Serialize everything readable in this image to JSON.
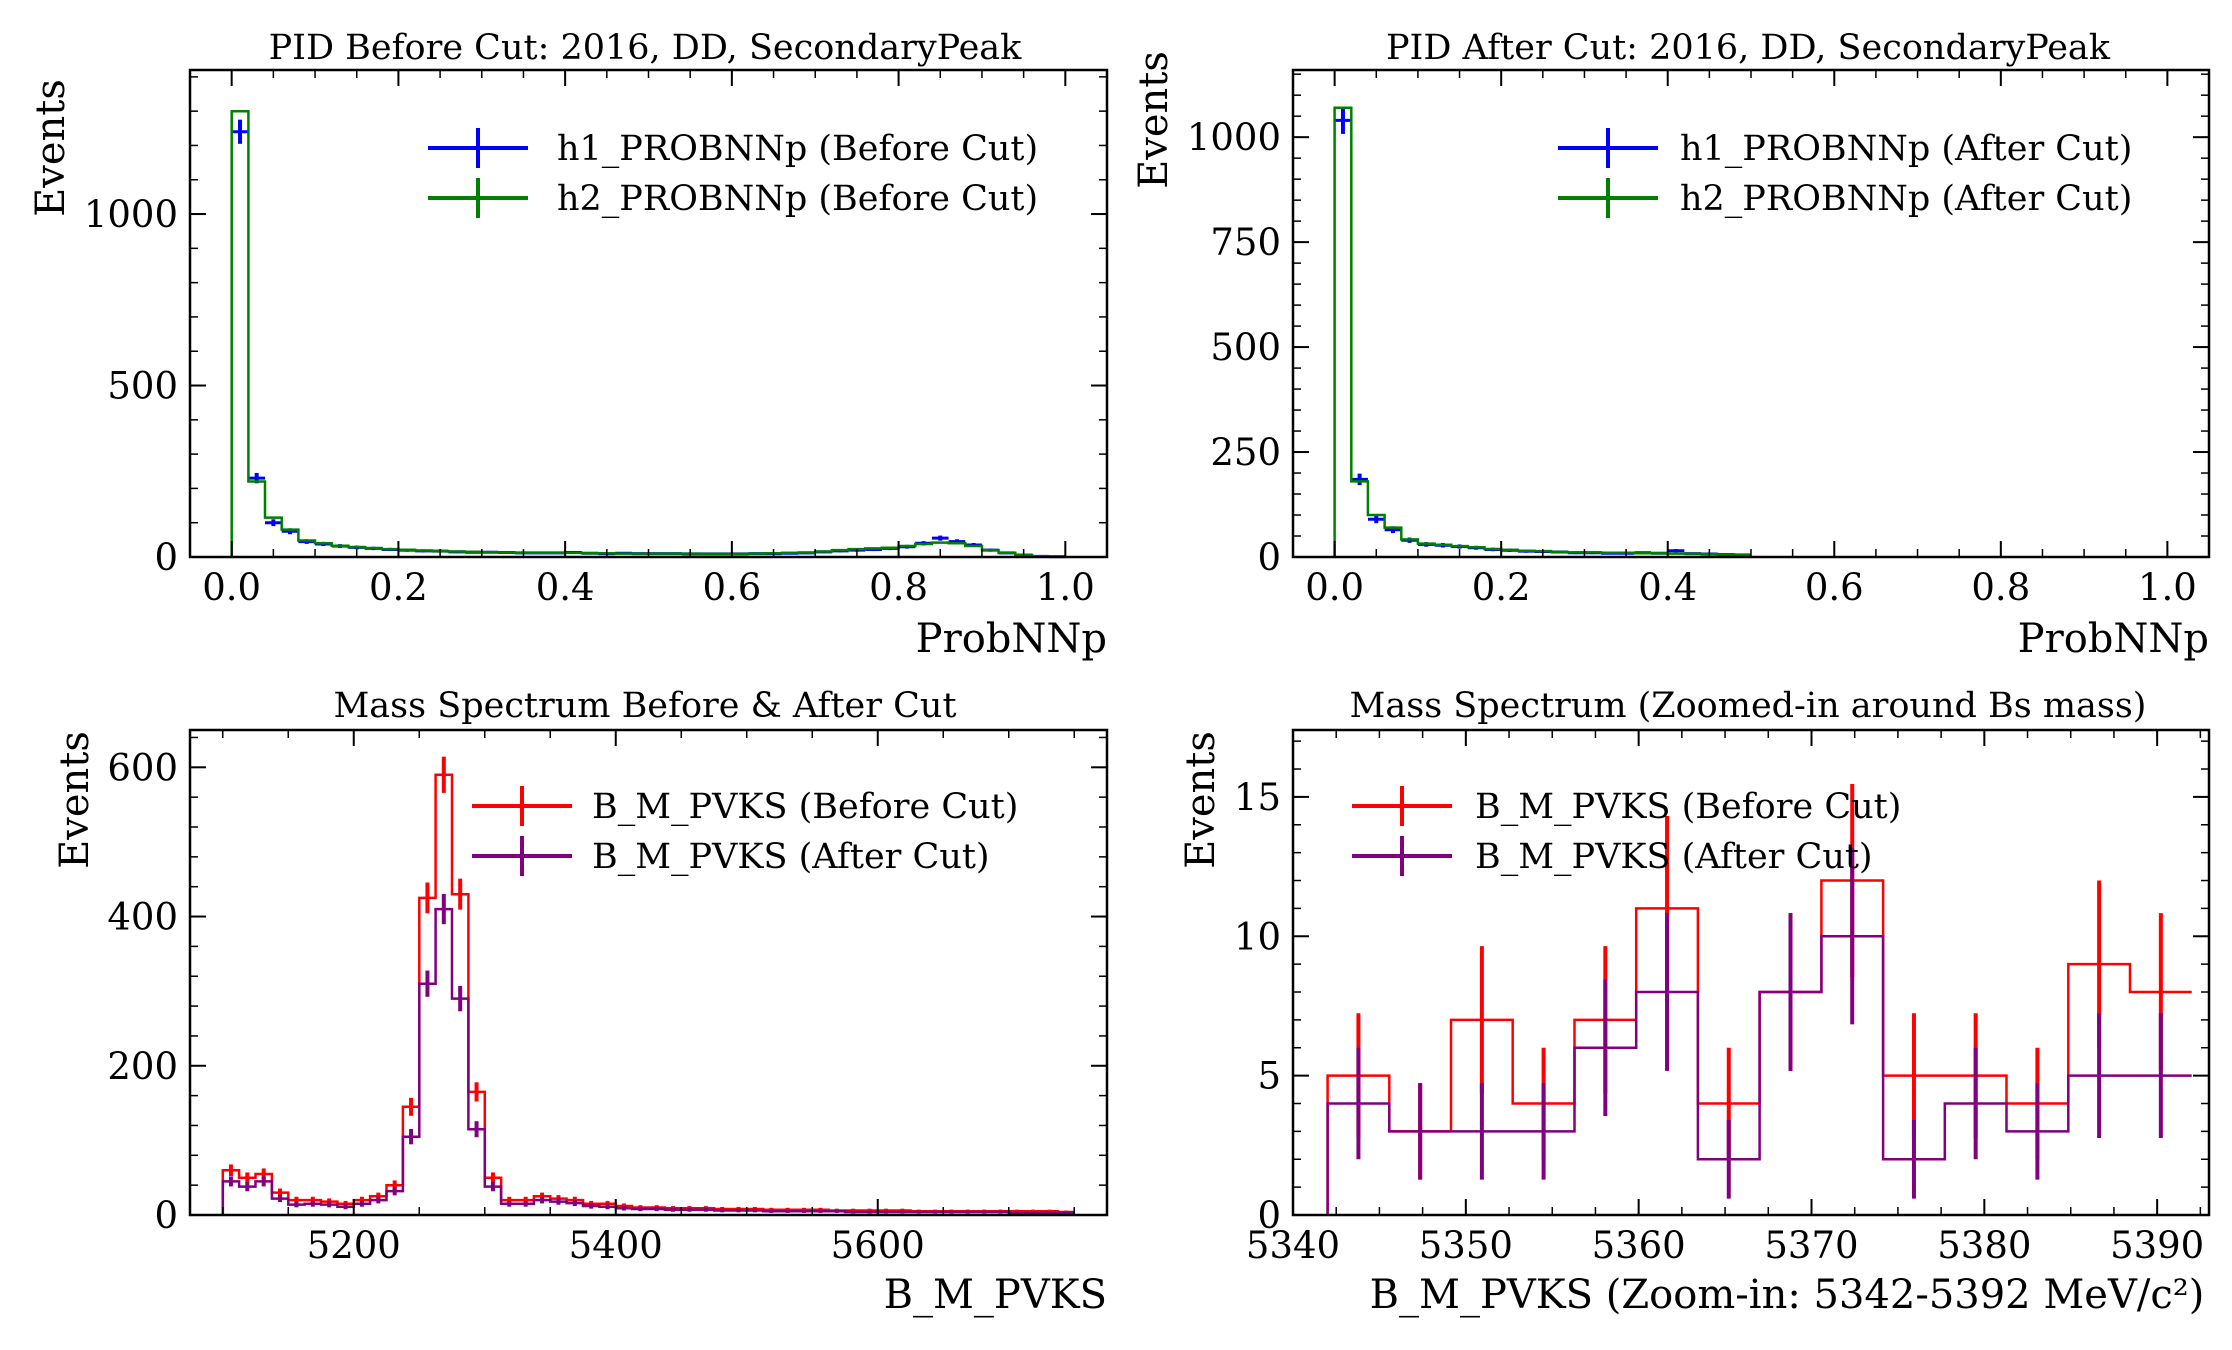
{
  "chart_data": [
    {
      "type": "histogram",
      "title": "PID Before Cut: 2016, DD, SecondaryPeak",
      "xlabel": "ProbNNp",
      "ylabel": "Events",
      "xlim": [
        -0.05,
        1.05
      ],
      "ylim": [
        0,
        1420
      ],
      "xticks": [
        "0.0",
        "0.2",
        "0.4",
        "0.6",
        "0.8",
        "1.0"
      ],
      "xtick_values": [
        0,
        0.2,
        0.4,
        0.6,
        0.8,
        1.0
      ],
      "yticks": [
        "0",
        "500",
        "1000"
      ],
      "ytick_values": [
        0,
        500,
        1000
      ],
      "legend_position": "top-right",
      "bin_edges": [
        0,
        0.02,
        0.04,
        0.06,
        0.08,
        0.1,
        0.12,
        0.14,
        0.16,
        0.18,
        0.2,
        0.22,
        0.24,
        0.26,
        0.28,
        0.3,
        0.32,
        0.34,
        0.36,
        0.38,
        0.4,
        0.42,
        0.44,
        0.46,
        0.48,
        0.5,
        0.52,
        0.54,
        0.56,
        0.58,
        0.6,
        0.62,
        0.64,
        0.66,
        0.68,
        0.7,
        0.72,
        0.74,
        0.76,
        0.78,
        0.8,
        0.82,
        0.84,
        0.86,
        0.88,
        0.9,
        0.92,
        0.94,
        0.96,
        0.98,
        1.0
      ],
      "series": [
        {
          "name": "h1_PROBNNp (Before Cut)",
          "color": "#0000ff",
          "style": "errorbar",
          "values": [
            1240,
            230,
            100,
            75,
            45,
            38,
            32,
            28,
            25,
            22,
            20,
            18,
            17,
            15,
            14,
            14,
            13,
            12,
            12,
            12,
            13,
            11,
            10,
            11,
            10,
            10,
            10,
            9,
            9,
            9,
            9,
            10,
            10,
            11,
            12,
            15,
            18,
            20,
            22,
            25,
            30,
            40,
            55,
            45,
            35,
            20,
            12,
            6,
            2,
            1
          ]
        },
        {
          "name": "h2_PROBNNp (Before Cut)",
          "color": "#008000",
          "style": "step",
          "values": [
            1300,
            220,
            115,
            80,
            48,
            40,
            33,
            29,
            26,
            23,
            21,
            19,
            17,
            16,
            15,
            14,
            13,
            12,
            12,
            12,
            12,
            11,
            11,
            10,
            10,
            10,
            10,
            10,
            9,
            9,
            9,
            10,
            11,
            12,
            13,
            16,
            20,
            23,
            25,
            27,
            32,
            38,
            42,
            40,
            32,
            20,
            12,
            6,
            2,
            1
          ]
        }
      ]
    },
    {
      "type": "histogram",
      "title": "PID After Cut: 2016, DD, SecondaryPeak",
      "xlabel": "ProbNNp",
      "ylabel": "Events",
      "xlim": [
        -0.05,
        1.05
      ],
      "ylim": [
        0,
        1160
      ],
      "xticks": [
        "0.0",
        "0.2",
        "0.4",
        "0.6",
        "0.8",
        "1.0"
      ],
      "xtick_values": [
        0,
        0.2,
        0.4,
        0.6,
        0.8,
        1.0
      ],
      "yticks": [
        "0",
        "250",
        "500",
        "750",
        "1000"
      ],
      "ytick_values": [
        0,
        250,
        500,
        750,
        1000
      ],
      "legend_position": "top-right",
      "bin_edges": [
        0,
        0.02,
        0.04,
        0.06,
        0.08,
        0.1,
        0.12,
        0.14,
        0.16,
        0.18,
        0.2,
        0.22,
        0.24,
        0.26,
        0.28,
        0.3,
        0.32,
        0.34,
        0.36,
        0.38,
        0.4,
        0.42,
        0.44,
        0.46,
        0.48,
        0.5
      ],
      "series": [
        {
          "name": "h1_PROBNNp (After Cut)",
          "color": "#0000ff",
          "style": "errorbar",
          "values": [
            1040,
            185,
            90,
            65,
            40,
            30,
            28,
            25,
            22,
            18,
            16,
            14,
            13,
            12,
            10,
            10,
            9,
            9,
            10,
            9,
            15,
            8,
            7,
            6,
            5
          ]
        },
        {
          "name": "h2_PROBNNp (After Cut)",
          "color": "#008000",
          "style": "step",
          "values": [
            1070,
            180,
            100,
            70,
            42,
            32,
            29,
            26,
            23,
            19,
            17,
            15,
            14,
            12,
            11,
            11,
            10,
            10,
            9,
            9,
            8,
            8,
            7,
            6,
            5
          ]
        }
      ]
    },
    {
      "type": "histogram",
      "title": "Mass Spectrum Before & After Cut",
      "xlabel": "B_M_PVKS",
      "ylabel": "Events",
      "xlim": [
        5075,
        5775
      ],
      "ylim": [
        0,
        650
      ],
      "xticks": [
        "5200",
        "5400",
        "5600"
      ],
      "xtick_values": [
        5200,
        5400,
        5600
      ],
      "yticks": [
        "0",
        "200",
        "400",
        "600"
      ],
      "ytick_values": [
        0,
        200,
        400,
        600
      ],
      "legend_position": "top-right",
      "bin_start": 5100,
      "bin_width": 12.5,
      "series": [
        {
          "name": "B_M_PVKS (Before Cut)",
          "color": "#ff0000",
          "style": "step-errorbar",
          "values": [
            60,
            50,
            55,
            30,
            20,
            20,
            18,
            15,
            20,
            25,
            40,
            145,
            425,
            590,
            430,
            165,
            50,
            20,
            20,
            25,
            22,
            20,
            15,
            15,
            12,
            10,
            10,
            9,
            9,
            9,
            8,
            8,
            8,
            7,
            7,
            7,
            7,
            6,
            6,
            6,
            6,
            6,
            5,
            5,
            5,
            5,
            5,
            5,
            5,
            5,
            5,
            4
          ]
        },
        {
          "name": "B_M_PVKS (After Cut)",
          "color": "#800080",
          "style": "step-errorbar",
          "values": [
            45,
            38,
            45,
            22,
            14,
            15,
            14,
            11,
            15,
            20,
            32,
            105,
            310,
            410,
            290,
            115,
            38,
            15,
            15,
            20,
            18,
            16,
            12,
            11,
            9,
            8,
            8,
            7,
            7,
            7,
            6,
            6,
            6,
            5,
            5,
            5,
            5,
            5,
            4,
            4,
            4,
            4,
            4,
            4,
            4,
            4,
            4,
            4,
            3,
            3,
            3,
            3
          ]
        }
      ]
    },
    {
      "type": "histogram",
      "title": "Mass Spectrum (Zoomed-in around Bs mass)",
      "xlabel": "B_M_PVKS (Zoom-in: 5342-5392 MeV/c²)",
      "ylabel": "Events",
      "xlim": [
        5340,
        5393
      ],
      "ylim": [
        0,
        17.4
      ],
      "xticks": [
        "5340",
        "5350",
        "5360",
        "5370",
        "5380",
        "5390"
      ],
      "xtick_values": [
        5340,
        5350,
        5360,
        5370,
        5380,
        5390
      ],
      "yticks": [
        "0",
        "5",
        "10",
        "15"
      ],
      "ytick_values": [
        0,
        5,
        10,
        15
      ],
      "legend_position": "top-left",
      "bin_start": 5342,
      "bin_width": 3.5714,
      "series": [
        {
          "name": "B_M_PVKS (Before Cut)",
          "color": "#ff0000",
          "style": "step-errorbar",
          "values": [
            5,
            3,
            7,
            4,
            7,
            11,
            4,
            8,
            12,
            5,
            5,
            4,
            9,
            8
          ]
        },
        {
          "name": "B_M_PVKS (After Cut)",
          "color": "#800080",
          "style": "step-errorbar",
          "values": [
            4,
            3,
            3,
            3,
            6,
            8,
            2,
            8,
            10,
            2,
            4,
            3,
            5,
            5
          ]
        }
      ]
    }
  ]
}
